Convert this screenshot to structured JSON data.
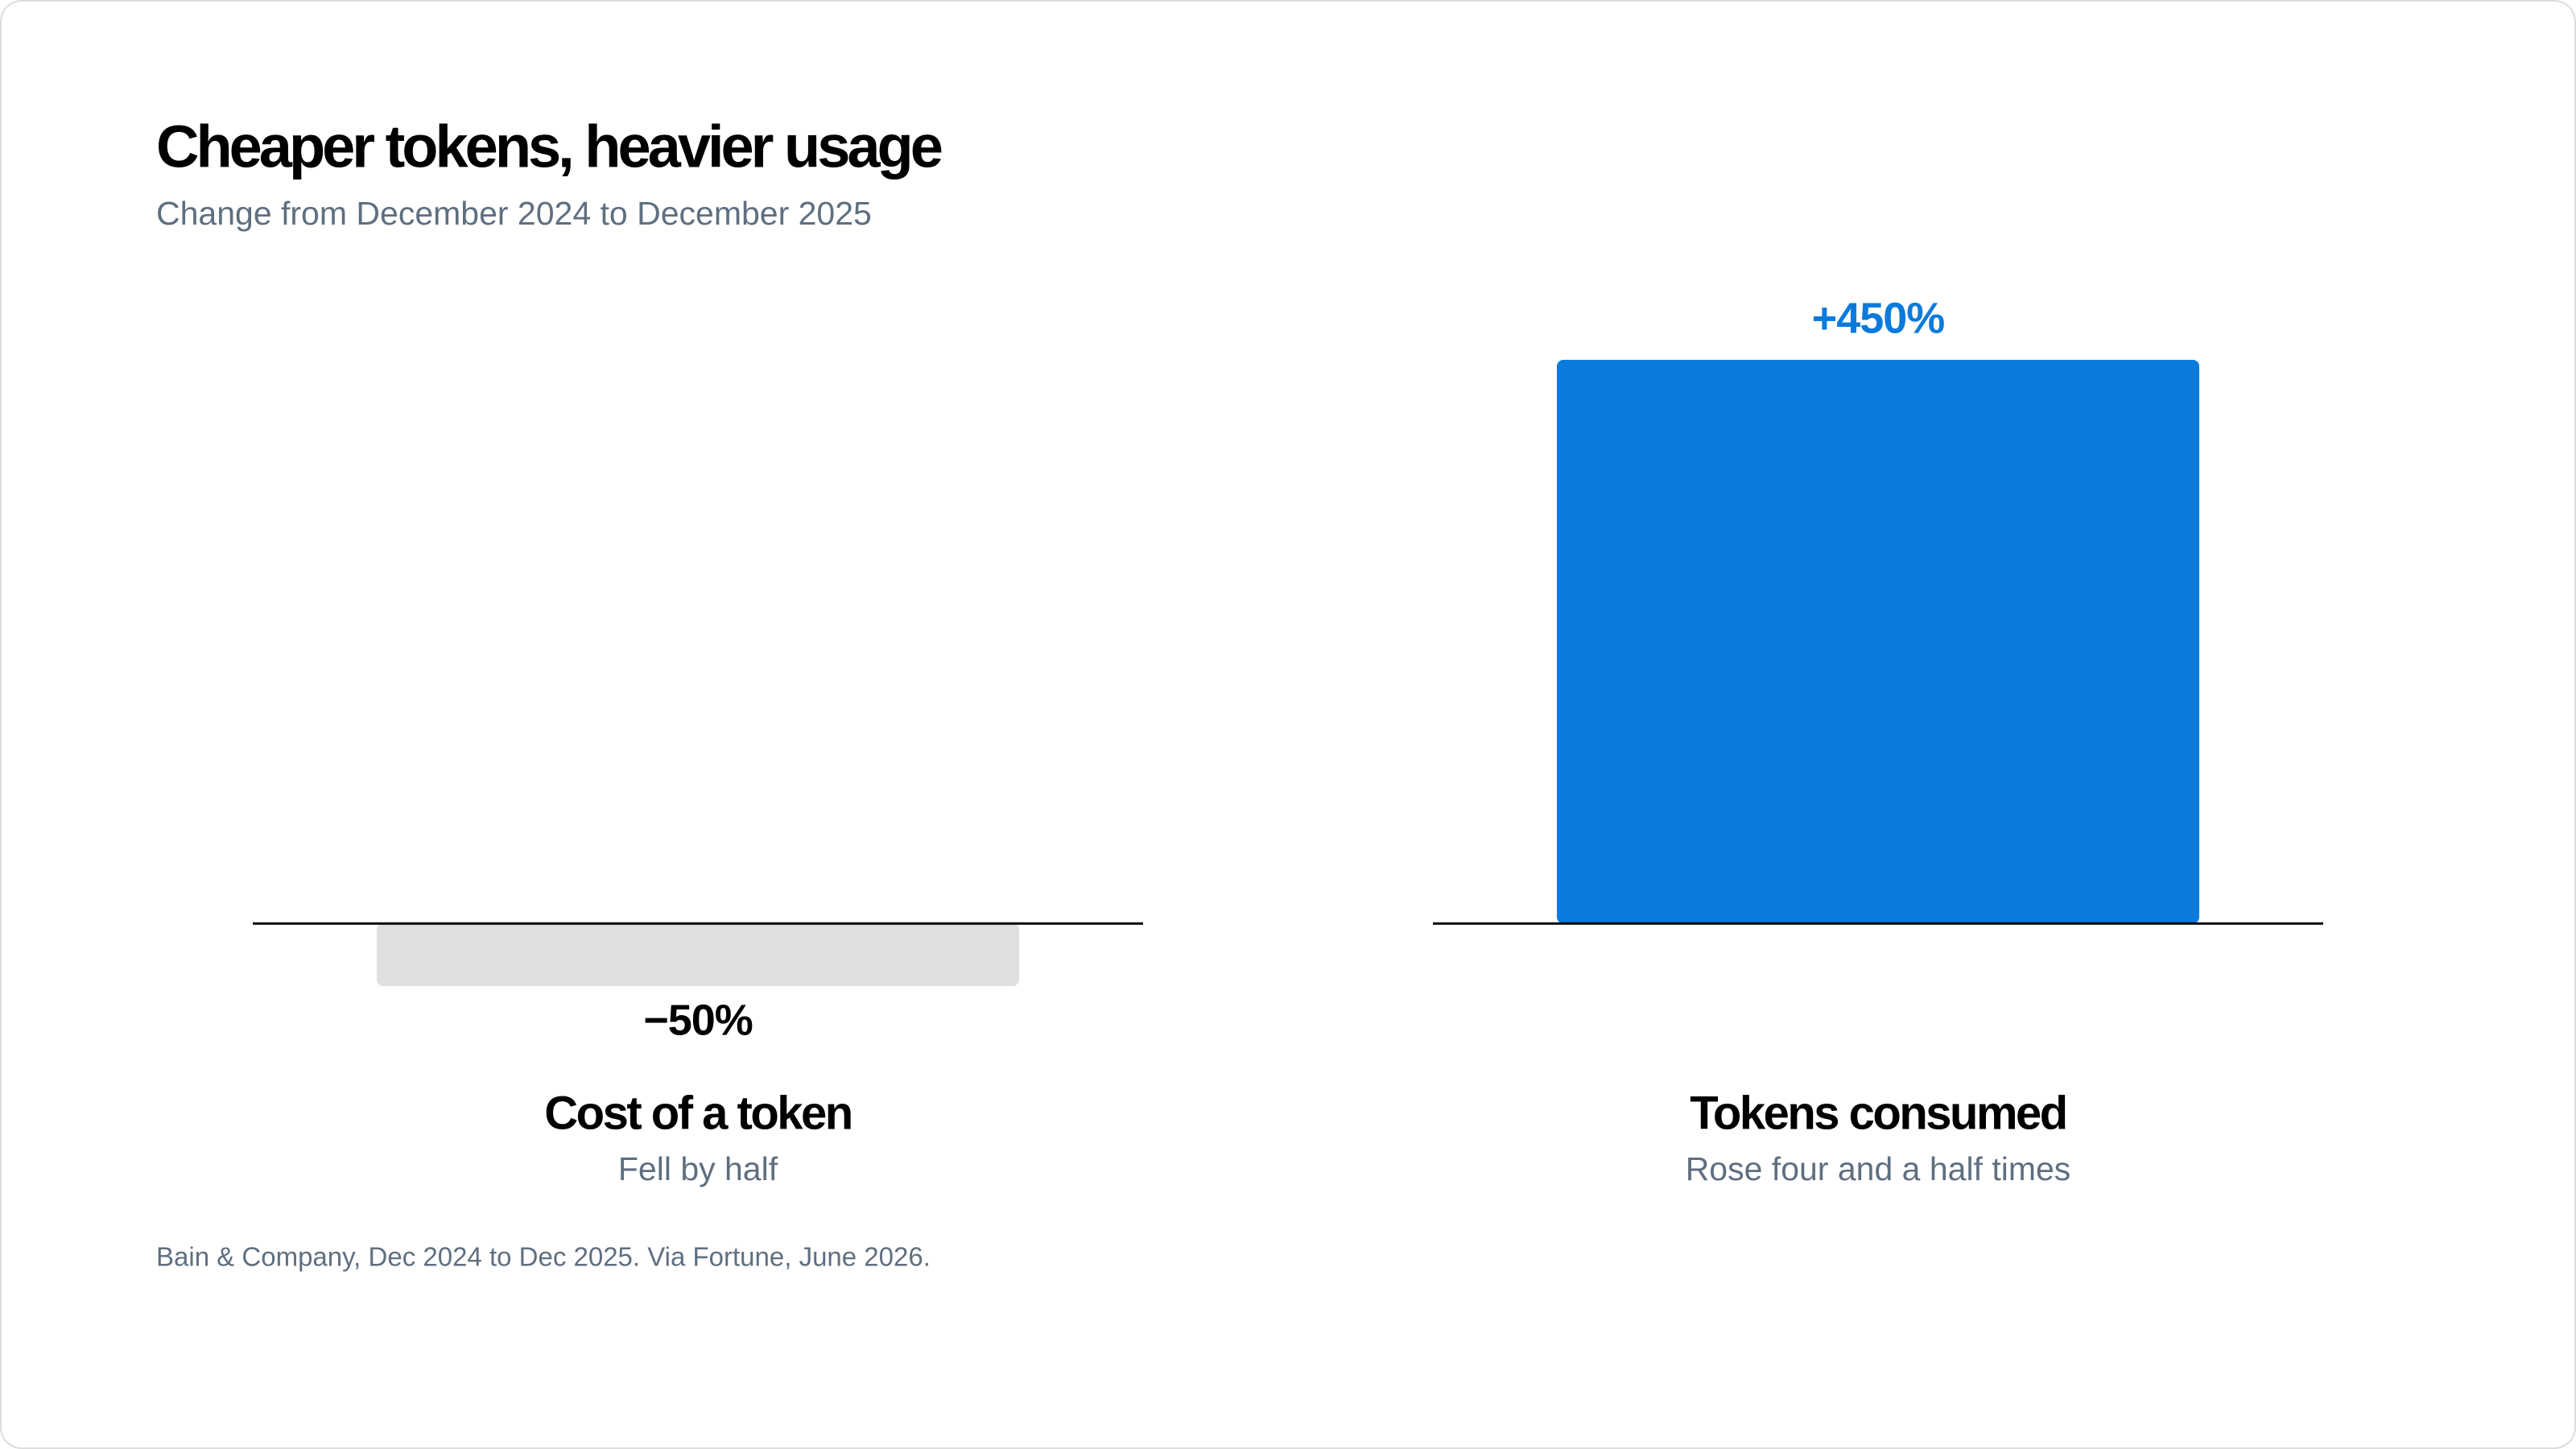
{
  "chart_data": {
    "type": "bar",
    "title": "Cheaper tokens, heavier usage",
    "subtitle": "Change from December 2024 to December 2025",
    "categories": [
      "Cost of a token",
      "Tokens consumed"
    ],
    "category_notes": [
      "Fell by half",
      "Rose four and a half times"
    ],
    "values": [
      -50,
      450
    ],
    "value_labels": [
      "−50%",
      "+450%"
    ],
    "colors": [
      "#e0e0e0",
      "#0a7bdc"
    ],
    "value_label_colors": [
      "#000000",
      "#0a7bdc"
    ],
    "ylim": [
      -50,
      450
    ],
    "source": "Bain & Company, Dec 2024 to Dec 2025. Via Fortune, June 2026."
  }
}
